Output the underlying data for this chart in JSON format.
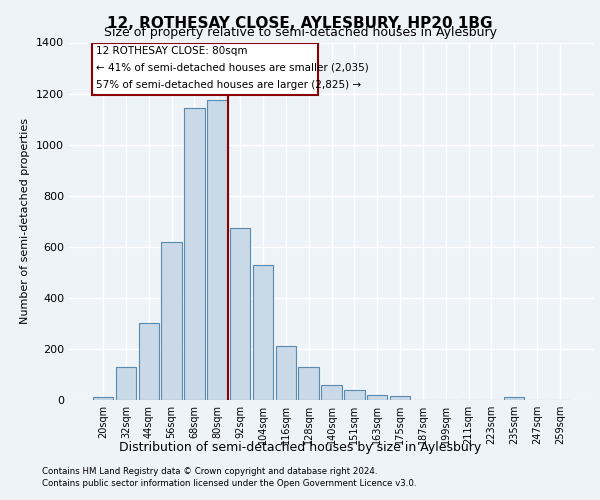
{
  "title": "12, ROTHESAY CLOSE, AYLESBURY, HP20 1BG",
  "subtitle": "Size of property relative to semi-detached houses in Aylesbury",
  "xlabel": "Distribution of semi-detached houses by size in Aylesbury",
  "ylabel": "Number of semi-detached properties",
  "bar_color": "#c9d9e8",
  "bar_edge_color": "#5a8ab0",
  "bin_labels": [
    "20sqm",
    "32sqm",
    "44sqm",
    "56sqm",
    "68sqm",
    "80sqm",
    "92sqm",
    "104sqm",
    "116sqm",
    "128sqm",
    "140sqm",
    "151sqm",
    "163sqm",
    "175sqm",
    "187sqm",
    "199sqm",
    "211sqm",
    "223sqm",
    "235sqm",
    "247sqm",
    "259sqm"
  ],
  "bar_heights": [
    10,
    130,
    300,
    620,
    1145,
    1175,
    675,
    530,
    210,
    130,
    60,
    40,
    20,
    15,
    0,
    0,
    0,
    0,
    10,
    0,
    0
  ],
  "red_line_index": 5,
  "annotation_title": "12 ROTHESAY CLOSE: 80sqm",
  "annotation_line1": "← 41% of semi-detached houses are smaller (2,035)",
  "annotation_line2": "57% of semi-detached houses are larger (2,825) →",
  "ylim": [
    0,
    1400
  ],
  "yticks": [
    0,
    200,
    400,
    600,
    800,
    1000,
    1200,
    1400
  ],
  "footnote1": "Contains HM Land Registry data © Crown copyright and database right 2024.",
  "footnote2": "Contains public sector information licensed under the Open Government Licence v3.0.",
  "background_color": "#eef3f8",
  "plot_bg_color": "#eef3f8",
  "grid_color": "#ffffff"
}
